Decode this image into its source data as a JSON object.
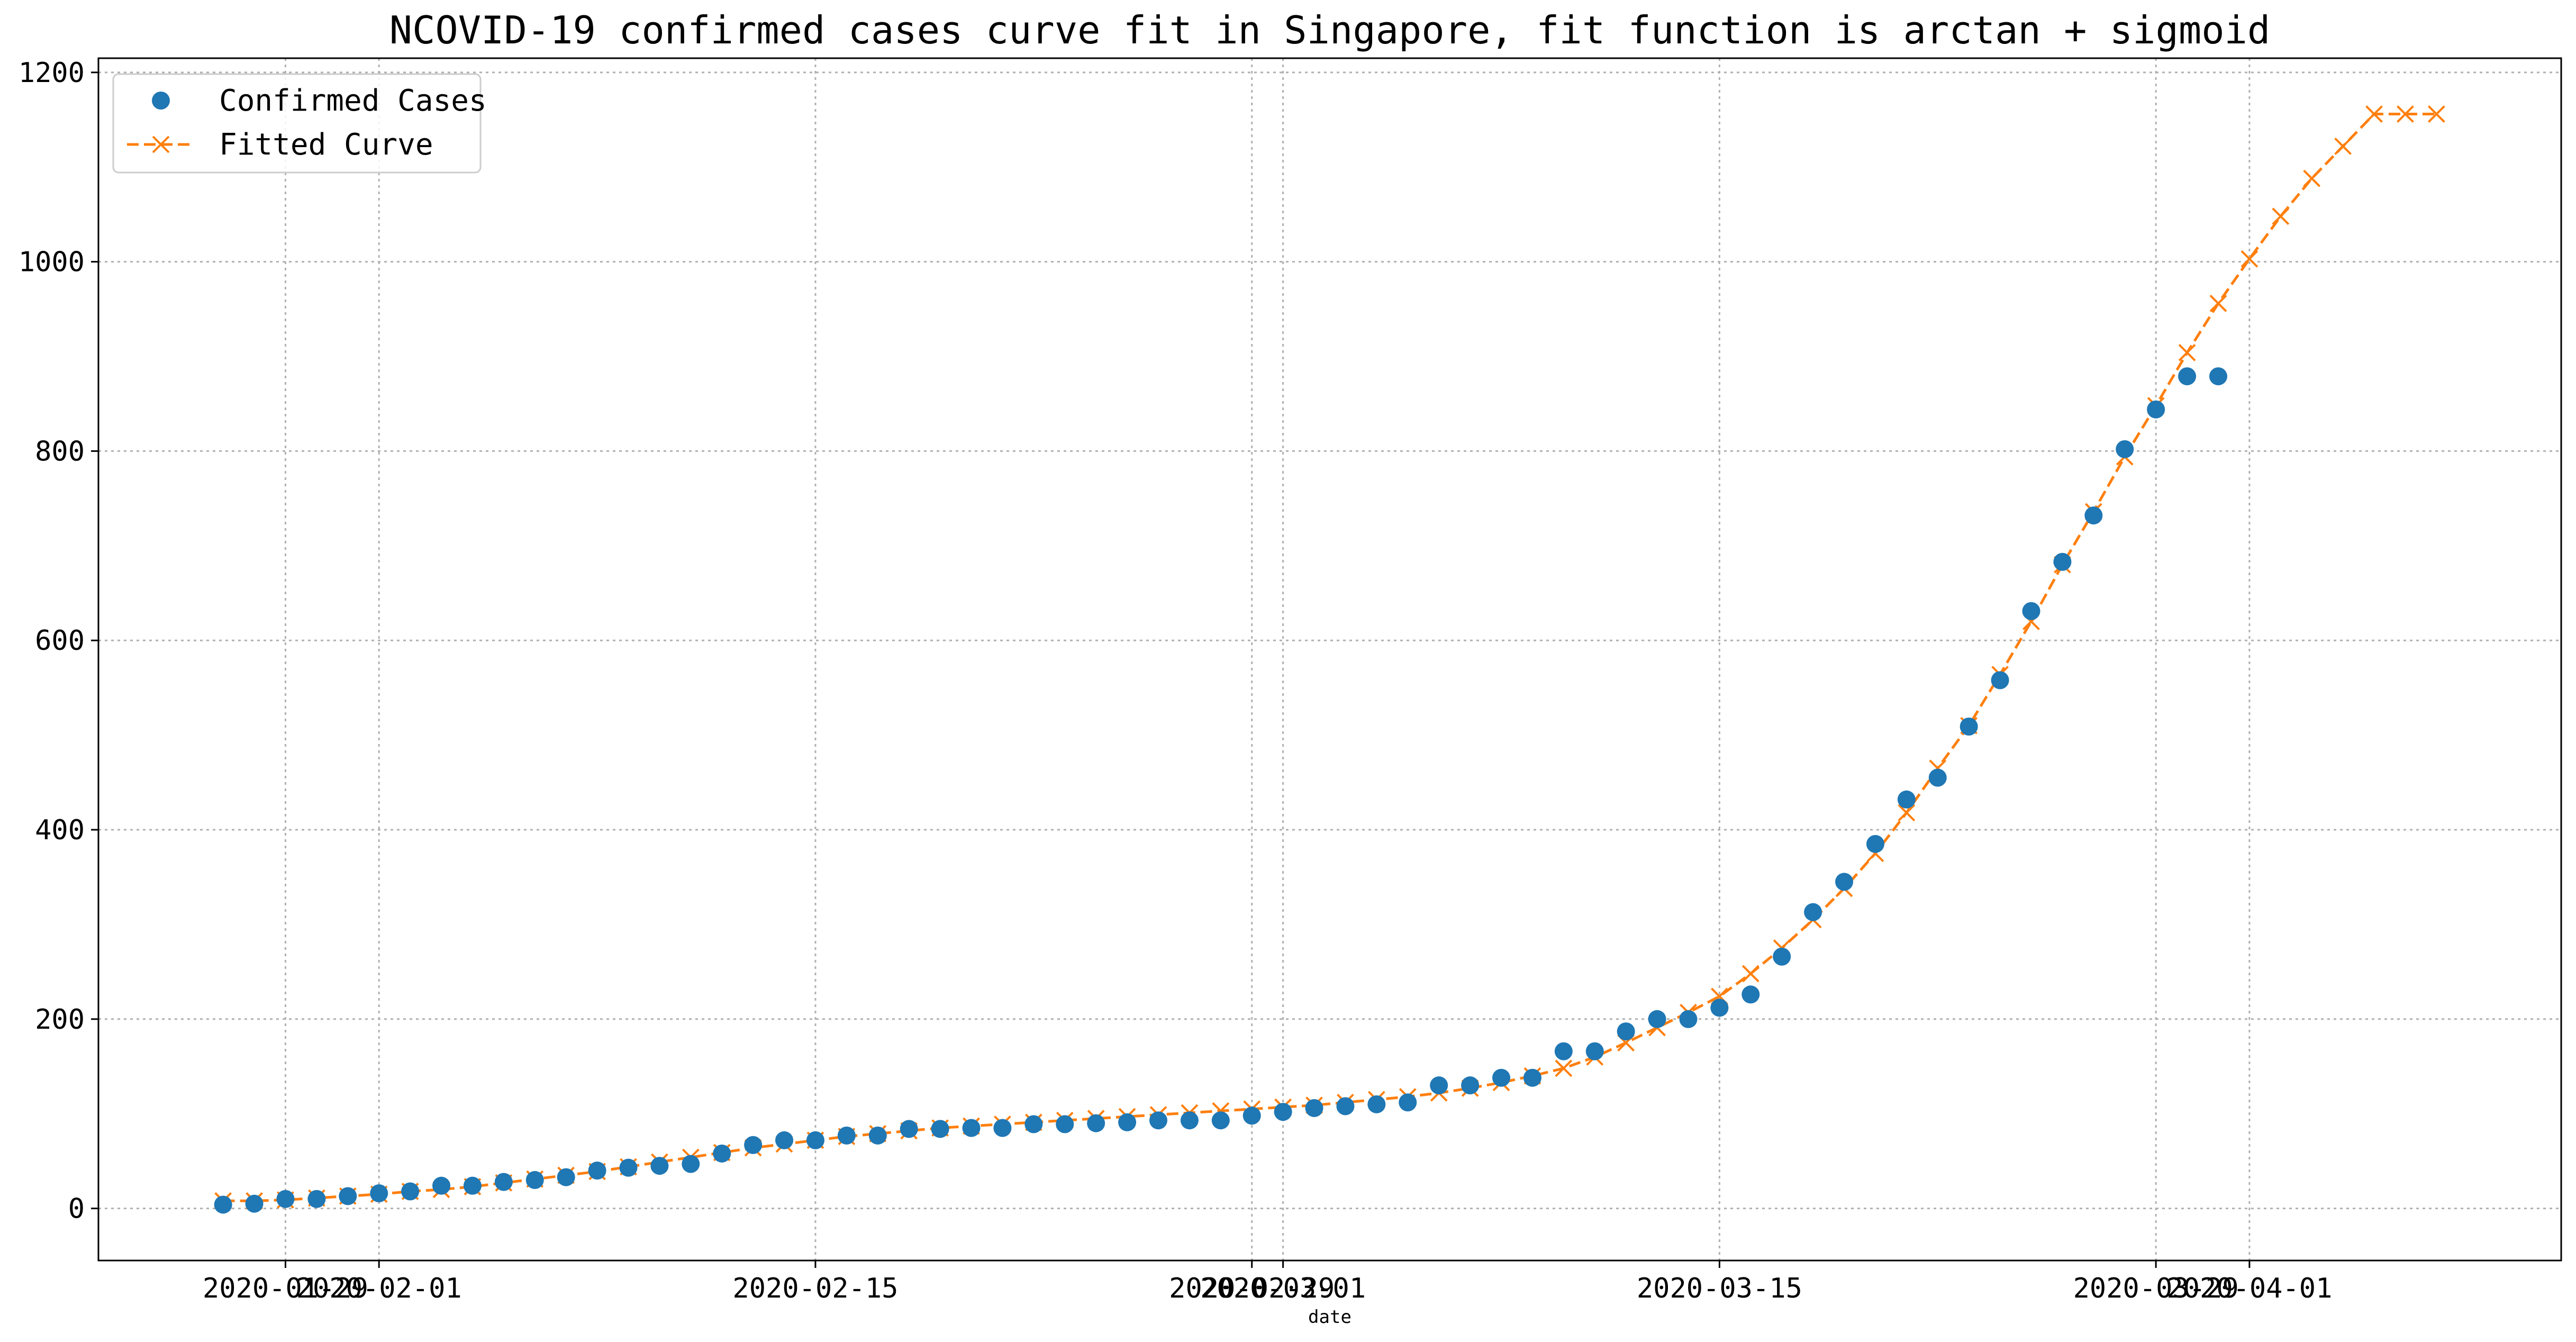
{
  "chart_data": {
    "type": "line",
    "title": "NCOVID-19 confirmed cases curve fit in Singapore, fit function is arctan + sigmoid",
    "xlabel": "date",
    "ylabel": "",
    "x_range": [
      "2020-01-23",
      "2020-04-11"
    ],
    "y_range": [
      -55,
      1215
    ],
    "grid": true,
    "legend_position": "upper-left",
    "x_ticks": [
      {
        "date": "2020-01-29",
        "label": "2020-01-29"
      },
      {
        "date": "2020-02-01",
        "label": "2020-02-01"
      },
      {
        "date": "2020-02-15",
        "label": "2020-02-15"
      },
      {
        "date": "2020-02-29",
        "label": "2020-02-29"
      },
      {
        "date": "2020-03-01",
        "label": "2020-03-01"
      },
      {
        "date": "2020-03-15",
        "label": "2020-03-15"
      },
      {
        "date": "2020-03-29",
        "label": "2020-03-29"
      },
      {
        "date": "2020-04-01",
        "label": "2020-04-01"
      }
    ],
    "y_ticks": [
      0,
      200,
      400,
      600,
      800,
      1000,
      1200
    ],
    "series": [
      {
        "name": "Confirmed Cases",
        "marker": "circle",
        "color": "#1f77b4",
        "x": [
          "2020-01-27",
          "2020-01-28",
          "2020-01-29",
          "2020-01-30",
          "2020-01-31",
          "2020-02-01",
          "2020-02-02",
          "2020-02-03",
          "2020-02-04",
          "2020-02-05",
          "2020-02-06",
          "2020-02-07",
          "2020-02-08",
          "2020-02-09",
          "2020-02-10",
          "2020-02-11",
          "2020-02-12",
          "2020-02-13",
          "2020-02-14",
          "2020-02-15",
          "2020-02-16",
          "2020-02-17",
          "2020-02-18",
          "2020-02-19",
          "2020-02-20",
          "2020-02-21",
          "2020-02-22",
          "2020-02-23",
          "2020-02-24",
          "2020-02-25",
          "2020-02-26",
          "2020-02-27",
          "2020-02-28",
          "2020-02-29",
          "2020-03-01",
          "2020-03-02",
          "2020-03-03",
          "2020-03-04",
          "2020-03-05",
          "2020-03-06",
          "2020-03-07",
          "2020-03-08",
          "2020-03-09",
          "2020-03-10",
          "2020-03-11",
          "2020-03-12",
          "2020-03-13",
          "2020-03-14",
          "2020-03-15",
          "2020-03-16",
          "2020-03-17",
          "2020-03-18",
          "2020-03-19",
          "2020-03-20",
          "2020-03-21",
          "2020-03-22",
          "2020-03-23",
          "2020-03-24",
          "2020-03-25",
          "2020-03-26",
          "2020-03-27",
          "2020-03-28",
          "2020-03-29",
          "2020-03-30",
          "2020-03-31"
        ],
        "y": [
          4,
          5,
          10,
          10,
          13,
          16,
          18,
          24,
          24,
          28,
          30,
          33,
          40,
          43,
          45,
          47,
          58,
          67,
          72,
          72,
          77,
          77,
          84,
          84,
          85,
          85,
          89,
          89,
          90,
          91,
          93,
          93,
          93,
          98,
          102,
          106,
          108,
          110,
          112,
          130,
          130,
          138,
          138,
          166,
          166,
          187,
          200,
          200,
          212,
          226,
          266,
          313,
          345,
          385,
          432,
          455,
          509,
          558,
          631,
          683,
          732,
          802,
          844,
          879,
          879
        ]
      },
      {
        "name": "Fitted Curve",
        "marker": "x",
        "linestyle": "dashed",
        "color": "#ff7f0e",
        "x": [
          "2020-01-27",
          "2020-01-28",
          "2020-01-29",
          "2020-01-30",
          "2020-01-31",
          "2020-02-01",
          "2020-02-02",
          "2020-02-03",
          "2020-02-04",
          "2020-02-05",
          "2020-02-06",
          "2020-02-07",
          "2020-02-08",
          "2020-02-09",
          "2020-02-10",
          "2020-02-11",
          "2020-02-12",
          "2020-02-13",
          "2020-02-14",
          "2020-02-15",
          "2020-02-16",
          "2020-02-17",
          "2020-02-18",
          "2020-02-19",
          "2020-02-20",
          "2020-02-21",
          "2020-02-22",
          "2020-02-23",
          "2020-02-24",
          "2020-02-25",
          "2020-02-26",
          "2020-02-27",
          "2020-02-28",
          "2020-02-29",
          "2020-03-01",
          "2020-03-02",
          "2020-03-03",
          "2020-03-04",
          "2020-03-05",
          "2020-03-06",
          "2020-03-07",
          "2020-03-08",
          "2020-03-09",
          "2020-03-10",
          "2020-03-11",
          "2020-03-12",
          "2020-03-13",
          "2020-03-14",
          "2020-03-15",
          "2020-03-16",
          "2020-03-17",
          "2020-03-18",
          "2020-03-19",
          "2020-03-20",
          "2020-03-21",
          "2020-03-22",
          "2020-03-23",
          "2020-03-24",
          "2020-03-25",
          "2020-03-26",
          "2020-03-27",
          "2020-03-28",
          "2020-03-29",
          "2020-03-30",
          "2020-03-31",
          "2020-04-01",
          "2020-04-02",
          "2020-04-03",
          "2020-04-04",
          "2020-04-05",
          "2020-04-06",
          "2020-04-07"
        ],
        "y": [
          8,
          8,
          9,
          11,
          13,
          15,
          18,
          20,
          23,
          27,
          31,
          35,
          39,
          44,
          49,
          54,
          59,
          64,
          68,
          72,
          76,
          79,
          82,
          85,
          87,
          89,
          91,
          93,
          95,
          97,
          99,
          101,
          103,
          105,
          107,
          109,
          112,
          115,
          118,
          122,
          127,
          133,
          140,
          148,
          160,
          175,
          191,
          207,
          224,
          248,
          275,
          305,
          338,
          375,
          418,
          465,
          510,
          564,
          620,
          680,
          736,
          794,
          848,
          904,
          956,
          1003,
          1048,
          1088,
          1122,
          1156,
          1156,
          1156
        ]
      }
    ]
  }
}
